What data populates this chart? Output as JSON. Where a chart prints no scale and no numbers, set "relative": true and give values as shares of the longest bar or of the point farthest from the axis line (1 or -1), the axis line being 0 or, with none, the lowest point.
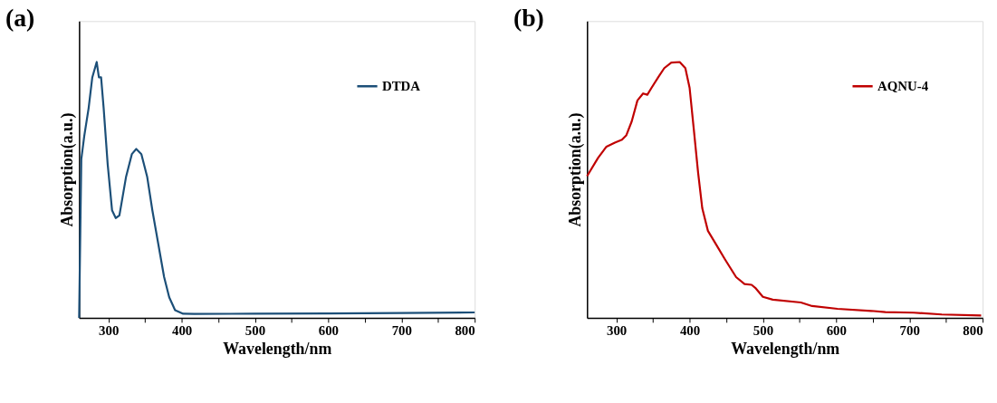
{
  "chart_data": [
    {
      "type": "line",
      "title": "(a)",
      "xlabel": "Wavelength/nm",
      "ylabel": "Absorption(a.u.)",
      "relative": true,
      "legend": "top right",
      "grid": false,
      "marker": "none",
      "line_style": "solid",
      "xlim": [
        260,
        800
      ],
      "xticks": [
        300,
        {
          "value": 350,
          "label": null
        },
        400,
        {
          "value": 450,
          "label": null
        },
        500,
        {
          "value": 550,
          "label": null
        },
        600,
        {
          "value": 650,
          "label": null
        },
        700,
        {
          "value": 750,
          "label": null
        },
        800
      ],
      "series": [
        {
          "name": "DTDA",
          "color": "#1c4f78",
          "x": [
            260,
            263,
            267,
            273,
            278,
            284,
            287,
            290,
            293.5,
            299,
            305,
            310,
            315,
            318,
            324,
            332,
            338,
            345,
            353,
            360,
            368,
            376,
            383,
            391,
            402,
            417,
            500,
            600,
            700,
            800
          ],
          "values": [
            0,
            0.62,
            0.71,
            0.82,
            0.94,
            1.0,
            0.94,
            0.94,
            0.82,
            0.6,
            0.42,
            0.39,
            0.4,
            0.45,
            0.55,
            0.64,
            0.66,
            0.64,
            0.55,
            0.42,
            0.29,
            0.16,
            0.08,
            0.03,
            0.016,
            0.015,
            0.016,
            0.017,
            0.019,
            0.021
          ]
        }
      ]
    },
    {
      "type": "line",
      "title": "(b)",
      "xlabel": "Wavelength/nm",
      "ylabel": "Absorption(a.u.)",
      "relative": true,
      "legend": "top right",
      "grid": false,
      "marker": "none",
      "line_style": "solid",
      "xlim": [
        260,
        800
      ],
      "xticks": [
        300,
        {
          "value": 350,
          "label": null
        },
        400,
        {
          "value": 450,
          "label": null
        },
        500,
        {
          "value": 550,
          "label": null
        },
        600,
        {
          "value": 650,
          "label": null
        },
        700,
        {
          "value": 750,
          "label": null
        },
        800
      ],
      "series": [
        {
          "name": "AQNU-4",
          "color": "#c00000",
          "x": [
            260,
            275,
            286.5,
            298,
            307.7,
            313.5,
            321,
            328.8,
            336.5,
            342.3,
            348,
            357.7,
            365.4,
            375,
            386.5,
            394.2,
            400,
            405.8,
            411.5,
            417.3,
            425,
            436.5,
            448,
            463.5,
            475,
            484.6,
            490.4,
            500,
            513.5,
            551.9,
            567.3,
            601.9,
            648,
            667.3,
            705.8,
            744.2,
            798
          ],
          "values": [
            0.554,
            0.625,
            0.669,
            0.685,
            0.696,
            0.713,
            0.768,
            0.85,
            0.877,
            0.872,
            0.899,
            0.943,
            0.976,
            0.998,
            1.0,
            0.976,
            0.899,
            0.735,
            0.57,
            0.428,
            0.34,
            0.285,
            0.23,
            0.159,
            0.132,
            0.129,
            0.115,
            0.082,
            0.071,
            0.06,
            0.046,
            0.035,
            0.027,
            0.022,
            0.02,
            0.013,
            0.009
          ]
        }
      ]
    }
  ]
}
